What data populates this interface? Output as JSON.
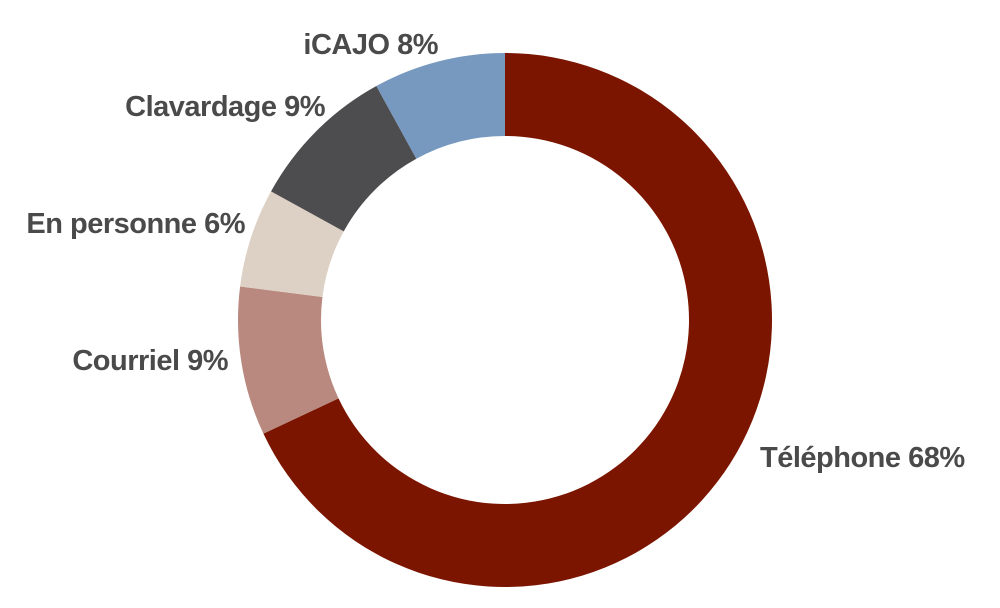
{
  "chart_data": {
    "type": "pie",
    "variant": "donut",
    "legend": "none",
    "slices": [
      {
        "label": "Téléphone 68%",
        "name": "Téléphone",
        "value": 68,
        "color": "#7b1500"
      },
      {
        "label": "Courriel 9%",
        "name": "Courriel",
        "value": 9,
        "color": "#b98980"
      },
      {
        "label": "En personne 6%",
        "name": "En personne",
        "value": 6,
        "color": "#ddd0c4"
      },
      {
        "label": "Clavardage  9%",
        "name": "Clavardage",
        "value": 9,
        "color": "#4d4d4f"
      },
      {
        "label": "iCAJO 8%",
        "name": "iCAJO",
        "value": 8,
        "color": "#7799bf"
      }
    ]
  }
}
